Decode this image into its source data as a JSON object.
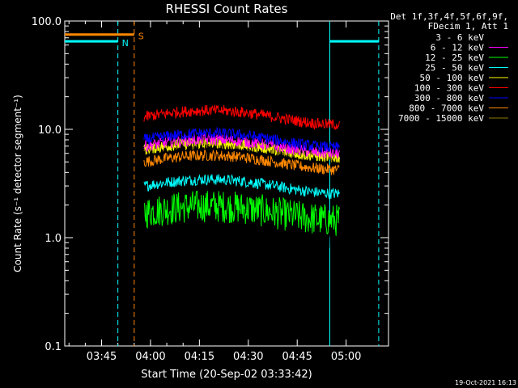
{
  "chart_data": {
    "type": "line",
    "title": "RHESSI Count Rates",
    "xlabel": "Start Time (20-Sep-02 03:33:42)",
    "ylabel": "Count Rate (s⁻¹ detector segment⁻¹)",
    "y_scale": "log",
    "ylim": [
      0.1,
      100.0
    ],
    "xlim": [
      "03:33:42",
      "05:13:00"
    ],
    "x_tick_labels": [
      "03:45",
      "04:00",
      "04:15",
      "04:30",
      "04:45",
      "05:00"
    ],
    "y_tick_labels": [
      "0.1",
      "1.0",
      "10.0",
      "100.0"
    ],
    "legend_title": [
      "Det 1f,3f,4f,5f,6f,9f,",
      "FDecim 1, Att 1"
    ],
    "legend_position": "right",
    "series": [
      {
        "name": "3 - 6 keV",
        "color": "#000000",
        "level": 1.4,
        "x_range": [
          "03:58",
          "04:58"
        ]
      },
      {
        "name": "6 - 12 keV",
        "color": "#ff00ff",
        "level": 7.0,
        "x_range": [
          "03:58",
          "04:58"
        ]
      },
      {
        "name": "12 - 25 keV",
        "color": "#00ff00",
        "level": 1.7,
        "x_range": [
          "03:58",
          "04:58"
        ]
      },
      {
        "name": "25 - 50 keV",
        "color": "#00ffff",
        "level": 3.0,
        "x_range": [
          "03:58",
          "04:58"
        ]
      },
      {
        "name": "50 - 100 keV",
        "color": "#ffff00",
        "level": 6.5,
        "x_range": [
          "03:58",
          "04:58"
        ]
      },
      {
        "name": "100 - 300 keV",
        "color": "#ff0000",
        "level": 13.0,
        "x_range": [
          "03:58",
          "04:58"
        ]
      },
      {
        "name": "300 - 800 keV",
        "color": "#0000ff",
        "level": 8.0,
        "x_range": [
          "03:58",
          "04:58"
        ]
      },
      {
        "name": "800 - 7000 keV",
        "color": "#ff8800",
        "level": 5.0,
        "x_range": [
          "03:58",
          "04:58"
        ]
      },
      {
        "name": "7000 - 15000 keV",
        "color": "#8b7a00",
        "level": 6.5,
        "x_range": [
          "03:58",
          "04:58"
        ]
      }
    ],
    "markers": [
      {
        "label": "N",
        "color": "#00ffff",
        "style": "dashed",
        "x": "03:50"
      },
      {
        "label": "S",
        "color": "#ff8800",
        "style": "dashed",
        "x": "03:55"
      },
      {
        "label": "",
        "color": "#00ffff",
        "style": "solid",
        "x": "04:55"
      },
      {
        "label": "",
        "color": "#00ffff",
        "style": "dashed",
        "x": "05:10"
      }
    ],
    "bars": [
      {
        "label": "N",
        "color": "#00ffff",
        "x_range": [
          "03:33:42",
          "03:50"
        ],
        "y": 65
      },
      {
        "label": "S",
        "color": "#ff8800",
        "x_range": [
          "03:33:42",
          "03:55"
        ],
        "y": 75
      },
      {
        "label": "",
        "color": "#00ffff",
        "x_range": [
          "04:55",
          "05:10"
        ],
        "y": 65
      }
    ],
    "footer_timestamp": "19-Oct-2021 16:13"
  }
}
